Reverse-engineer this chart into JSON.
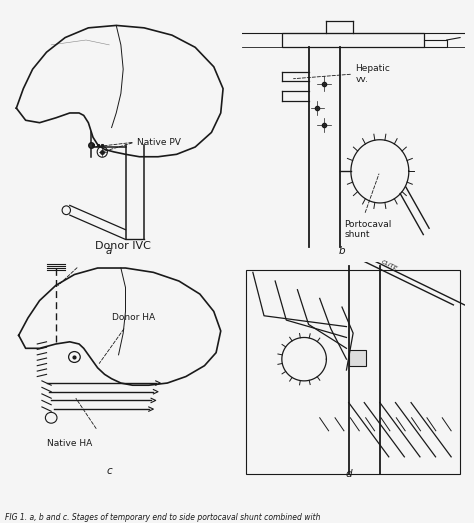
{
  "bg_color": "#f5f5f5",
  "line_color": "#1a1a1a",
  "fig_width": 4.74,
  "fig_height": 5.23,
  "dpi": 100,
  "label_a": "a",
  "label_b": "b",
  "label_c": "c",
  "label_d": "d",
  "label_donor_ivc": "Donor IVC",
  "label_native_pv": "Native PV",
  "label_hepatic_vv": "Hepatic\nvv.",
  "label_portocaval": "Portocaval\nshunt",
  "label_donor_ha": "Donor HA",
  "label_native_ha": "Native HA",
  "caption": "FIG 1. a, b and c. Stages of temporary end to side portocaval shunt combined with",
  "caption_fontsize": 5.5,
  "label_fontsize": 7.5,
  "annot_fontsize": 6.5,
  "lw": 0.9
}
